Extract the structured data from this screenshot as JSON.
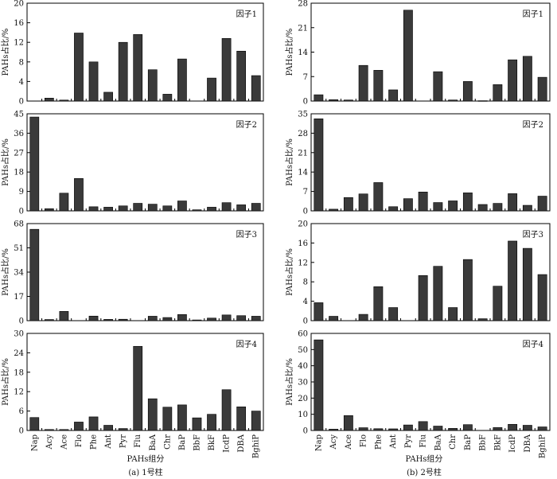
{
  "categories": [
    "Nap",
    "Acy",
    "Ace",
    "Flo",
    "Phe",
    "Ant",
    "Pyr",
    "Flu",
    "BaA",
    "Chr",
    "BaP",
    "BbF",
    "BkF",
    "IcdP",
    "DBA",
    "BghiP"
  ],
  "ylabel": "PAHs占比/%",
  "xlabel": "PAHs组分",
  "captions": [
    "(a)  1号柱",
    "(b)  2号柱"
  ],
  "colors": {
    "bar": "#3a3a3a",
    "frame": "#000000"
  },
  "chart_data": [
    {
      "type": "bar",
      "title": "因子1",
      "column": "1号柱",
      "ylim": [
        0,
        20
      ],
      "yticks": [
        0,
        4,
        8,
        12,
        16,
        20
      ],
      "values": [
        0,
        0.6,
        0.2,
        13.9,
        8.0,
        1.8,
        12.0,
        13.6,
        6.4,
        1.4,
        8.6,
        0,
        4.7,
        12.8,
        10.2,
        5.2
      ]
    },
    {
      "type": "bar",
      "title": "因子2",
      "column": "1号柱",
      "ylim": [
        0,
        45
      ],
      "yticks": [
        0,
        9,
        18,
        27,
        36,
        45
      ],
      "values": [
        43.5,
        1.0,
        8.2,
        15.0,
        1.9,
        1.7,
        2.3,
        3.5,
        3.1,
        2.3,
        4.6,
        0.5,
        1.7,
        3.8,
        2.8,
        3.5
      ]
    },
    {
      "type": "bar",
      "title": "因子3",
      "column": "1号柱",
      "ylim": [
        0,
        68
      ],
      "yticks": [
        0,
        17,
        34,
        51,
        68
      ],
      "values": [
        64,
        0.8,
        6.5,
        0,
        3.2,
        0.9,
        1.0,
        0,
        3.1,
        2.2,
        4.3,
        0.5,
        1.8,
        4.0,
        3.5,
        3.1
      ]
    },
    {
      "type": "bar",
      "title": "因子4",
      "column": "1号柱",
      "ylim": [
        0,
        30
      ],
      "yticks": [
        0,
        6,
        12,
        18,
        24,
        30
      ],
      "values": [
        4.0,
        0.3,
        0.3,
        2.6,
        4.2,
        1.6,
        0.6,
        26.0,
        9.8,
        7.2,
        7.9,
        3.9,
        5.0,
        12.6,
        7.3,
        6.0
      ]
    },
    {
      "type": "bar",
      "title": "因子1",
      "column": "2号柱",
      "ylim": [
        0,
        28
      ],
      "yticks": [
        0,
        7,
        14,
        21,
        28
      ],
      "values": [
        1.8,
        0.4,
        0.3,
        10.2,
        8.8,
        3.2,
        26.0,
        0,
        8.4,
        0.3,
        5.6,
        0.1,
        4.7,
        11.8,
        12.8,
        6.8
      ]
    },
    {
      "type": "bar",
      "title": "因子2",
      "column": "2号柱",
      "ylim": [
        0,
        35
      ],
      "yticks": [
        0,
        7,
        14,
        21,
        28,
        35
      ],
      "values": [
        33.2,
        0.6,
        4.8,
        6.1,
        10.2,
        1.5,
        4.4,
        6.8,
        3.0,
        3.6,
        6.5,
        2.3,
        2.7,
        6.2,
        2.0,
        5.3
      ]
    },
    {
      "type": "bar",
      "title": "因子3",
      "column": "2号柱",
      "ylim": [
        0,
        20
      ],
      "yticks": [
        0,
        4,
        8,
        12,
        16,
        20
      ],
      "values": [
        3.7,
        0.9,
        0,
        1.3,
        7.0,
        2.7,
        0,
        9.3,
        11.2,
        2.7,
        12.6,
        0.4,
        7.1,
        16.4,
        14.9,
        9.5
      ]
    },
    {
      "type": "bar",
      "title": "因子4",
      "column": "2号柱",
      "ylim": [
        0,
        60
      ],
      "yticks": [
        0,
        10,
        20,
        30,
        40,
        50,
        60
      ],
      "values": [
        56.0,
        0.8,
        9.2,
        1.7,
        1.1,
        1.0,
        3.4,
        5.5,
        2.7,
        1.3,
        3.6,
        0,
        1.8,
        3.8,
        3.2,
        2.2
      ]
    }
  ]
}
